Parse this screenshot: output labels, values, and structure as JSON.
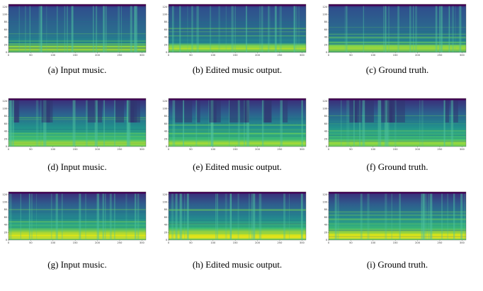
{
  "axes": {
    "yticks": [
      0,
      20,
      40,
      60,
      80,
      100,
      120
    ],
    "xticks": [
      0,
      50,
      100,
      150,
      200,
      250,
      300
    ]
  },
  "panels": [
    {
      "caption": "(a) Input music."
    },
    {
      "caption": "(b) Edited music output."
    },
    {
      "caption": "(c) Ground truth."
    },
    {
      "caption": "(d) Input music."
    },
    {
      "caption": "(e) Edited music output."
    },
    {
      "caption": "(f) Ground truth."
    },
    {
      "caption": "(g) Input music."
    },
    {
      "caption": "(h) Edited music output."
    },
    {
      "caption": "(i) Ground truth."
    }
  ]
}
